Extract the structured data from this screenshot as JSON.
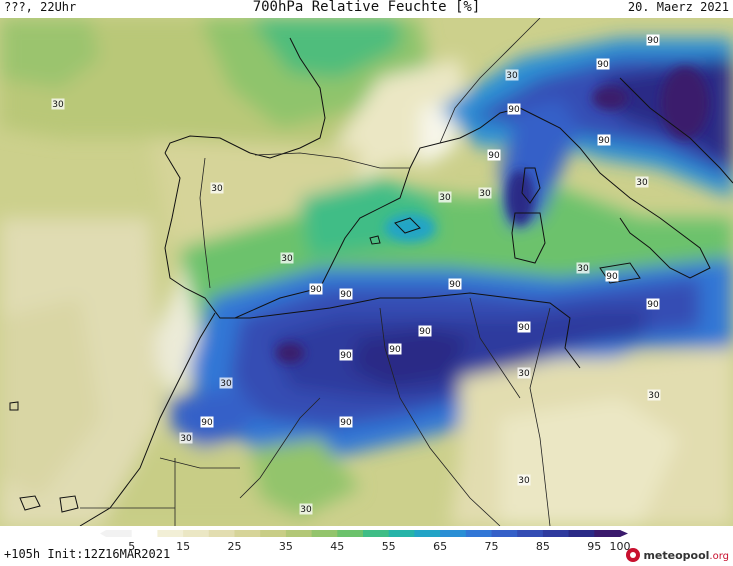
{
  "header": {
    "left": "???, 22Uhr",
    "title": "700hPa Relative Feuchte [%]",
    "right": "20. Maerz 2021"
  },
  "footer": {
    "run_info": "+105h  Init:12Z16MAR2021"
  },
  "logo": {
    "name": "meteopool",
    "tld": ".org",
    "brand_color": "#c8102e"
  },
  "legend": {
    "tick_labels": [
      "5",
      "15",
      "25",
      "35",
      "45",
      "55",
      "65",
      "75",
      "85",
      "95",
      "100"
    ],
    "bins": [
      {
        "from": 0,
        "to": 5,
        "color": "#f2f2f2"
      },
      {
        "from": 5,
        "to": 10,
        "color": "#ffffff"
      },
      {
        "from": 10,
        "to": 15,
        "color": "#f2efd6"
      },
      {
        "from": 15,
        "to": 20,
        "color": "#ebe7c4"
      },
      {
        "from": 20,
        "to": 25,
        "color": "#e2ddb0"
      },
      {
        "from": 25,
        "to": 30,
        "color": "#d6d499"
      },
      {
        "from": 30,
        "to": 35,
        "color": "#c8cd86"
      },
      {
        "from": 35,
        "to": 40,
        "color": "#b2c777"
      },
      {
        "from": 40,
        "to": 45,
        "color": "#93c46c"
      },
      {
        "from": 45,
        "to": 50,
        "color": "#6cc26c"
      },
      {
        "from": 50,
        "to": 55,
        "color": "#3fbd86"
      },
      {
        "from": 55,
        "to": 60,
        "color": "#26b4a8"
      },
      {
        "from": 60,
        "to": 65,
        "color": "#22a4c6"
      },
      {
        "from": 65,
        "to": 70,
        "color": "#2a8fd5"
      },
      {
        "from": 70,
        "to": 75,
        "color": "#3277d6"
      },
      {
        "from": 75,
        "to": 80,
        "color": "#3560c8"
      },
      {
        "from": 80,
        "to": 85,
        "color": "#344db4"
      },
      {
        "from": 85,
        "to": 90,
        "color": "#2f3a9e"
      },
      {
        "from": 90,
        "to": 95,
        "color": "#2a2a86"
      },
      {
        "from": 95,
        "to": 100,
        "color": "#3a1a6c"
      }
    ]
  },
  "contour_labels": [
    "30",
    "90"
  ],
  "colors": {
    "coastline": "#111111",
    "border": "#222222"
  }
}
